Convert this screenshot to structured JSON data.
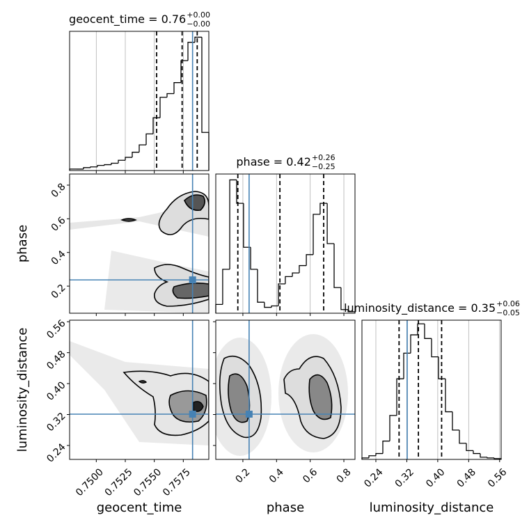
{
  "chart_data": {
    "type": "corner",
    "truth_color": "#4682b4",
    "hist_color": "#000000",
    "grid": true,
    "hist_ylim": [
      0,
      190
    ],
    "parameters": [
      {
        "name": "geocent_time",
        "title": "geocent_time = 0.76",
        "title_plus": "+0.00",
        "title_minus": "−0.00",
        "lim": [
          0.7477,
          0.7597
        ],
        "ticks": [
          {
            "value": 0.75,
            "label": "0.7500"
          },
          0.7525,
          {
            "value": 0.755,
            "label": "0.7550"
          },
          0.7575
        ],
        "truth": 0.7583,
        "quantiles": [
          0.7552,
          0.7574,
          0.7587
        ],
        "bins": [
          0.7477,
          0.7483,
          0.7489,
          0.7495,
          0.7501,
          0.7507,
          0.7513,
          0.7519,
          0.7525,
          0.7531,
          0.7537,
          0.7543,
          0.7549,
          0.7555,
          0.7561,
          0.7567,
          0.7573,
          0.7579,
          0.7585,
          0.7591,
          0.7597
        ],
        "counts": [
          2,
          2,
          4,
          5,
          7,
          8,
          10,
          14,
          18,
          25,
          35,
          50,
          72,
          100,
          105,
          120,
          150,
          175,
          182,
          52
        ]
      },
      {
        "name": "phase",
        "title": "phase = 0.42",
        "title_plus": "+0.26",
        "title_minus": "−0.25",
        "lim": [
          0.039,
          0.866
        ],
        "ticks": [
          0.2,
          0.4,
          0.6,
          0.8
        ],
        "truth": 0.237,
        "quantiles": [
          0.17,
          0.42,
          0.68
        ],
        "bins": [
          0.039,
          0.08,
          0.122,
          0.163,
          0.204,
          0.246,
          0.287,
          0.328,
          0.37,
          0.411,
          0.452,
          0.494,
          0.535,
          0.577,
          0.618,
          0.659,
          0.701,
          0.742,
          0.783,
          0.825,
          0.866
        ],
        "counts": [
          12,
          60,
          182,
          150,
          90,
          60,
          15,
          8,
          10,
          40,
          50,
          55,
          65,
          80,
          135,
          150,
          95,
          35,
          5,
          2
        ]
      },
      {
        "name": "luminosity_distance",
        "title": "luminosity_distance = 0.35",
        "title_plus": "+0.06",
        "title_minus": "−0.05",
        "lim": [
          0.204,
          0.564
        ],
        "ticks": [
          0.24,
          0.32,
          {
            "value": 0.4,
            "label": "0.40"
          },
          0.48,
          0.56
        ],
        "truth": 0.321,
        "quantiles": [
          0.3,
          0.35,
          0.41
        ],
        "bins": [
          0.204,
          0.222,
          0.24,
          0.258,
          0.276,
          0.294,
          0.312,
          0.33,
          0.348,
          0.366,
          0.384,
          0.402,
          0.42,
          0.438,
          0.456,
          0.474,
          0.492,
          0.51,
          0.528,
          0.546,
          0.564
        ],
        "counts": [
          2,
          5,
          8,
          25,
          60,
          110,
          145,
          170,
          185,
          165,
          140,
          110,
          65,
          40,
          22,
          12,
          8,
          3,
          2,
          1
        ]
      }
    ]
  }
}
